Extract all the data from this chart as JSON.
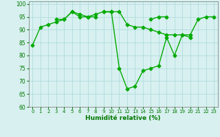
{
  "x": [
    0,
    1,
    2,
    3,
    4,
    5,
    6,
    7,
    8,
    9,
    10,
    11,
    12,
    13,
    14,
    15,
    16,
    17,
    18,
    19,
    20,
    21,
    22,
    23
  ],
  "line1": [
    84,
    91,
    92,
    93,
    94,
    97,
    95,
    95,
    96,
    97,
    97,
    75,
    67,
    68,
    74,
    75,
    76,
    87,
    80,
    88,
    88,
    94,
    95,
    95
  ],
  "line2": [
    null,
    null,
    null,
    94,
    94,
    97,
    96,
    95,
    95,
    null,
    null,
    null,
    null,
    null,
    null,
    null,
    null,
    null,
    null,
    null,
    null,
    null,
    null,
    null
  ],
  "line3": [
    null,
    null,
    null,
    null,
    null,
    null,
    null,
    null,
    null,
    97,
    97,
    null,
    null,
    null,
    null,
    94,
    95,
    95,
    null,
    null,
    null,
    null,
    null,
    null
  ],
  "line4": [
    null,
    null,
    null,
    null,
    null,
    null,
    null,
    null,
    null,
    null,
    97,
    97,
    92,
    91,
    91,
    90,
    89,
    88,
    88,
    88,
    87,
    null,
    null,
    null
  ],
  "bg_color": "#d8f0f0",
  "grid_color": "#a8d8d8",
  "line_color": "#00aa00",
  "xlabel": "Humidité relative (%)",
  "xlim": [
    -0.5,
    23.5
  ],
  "ylim": [
    60,
    101
  ],
  "yticks": [
    60,
    65,
    70,
    75,
    80,
    85,
    90,
    95,
    100
  ],
  "xticks": [
    0,
    1,
    2,
    3,
    4,
    5,
    6,
    7,
    8,
    9,
    10,
    11,
    12,
    13,
    14,
    15,
    16,
    17,
    18,
    19,
    20,
    21,
    22,
    23
  ],
  "marker": "D",
  "markersize": 2.5,
  "linewidth": 1.0
}
